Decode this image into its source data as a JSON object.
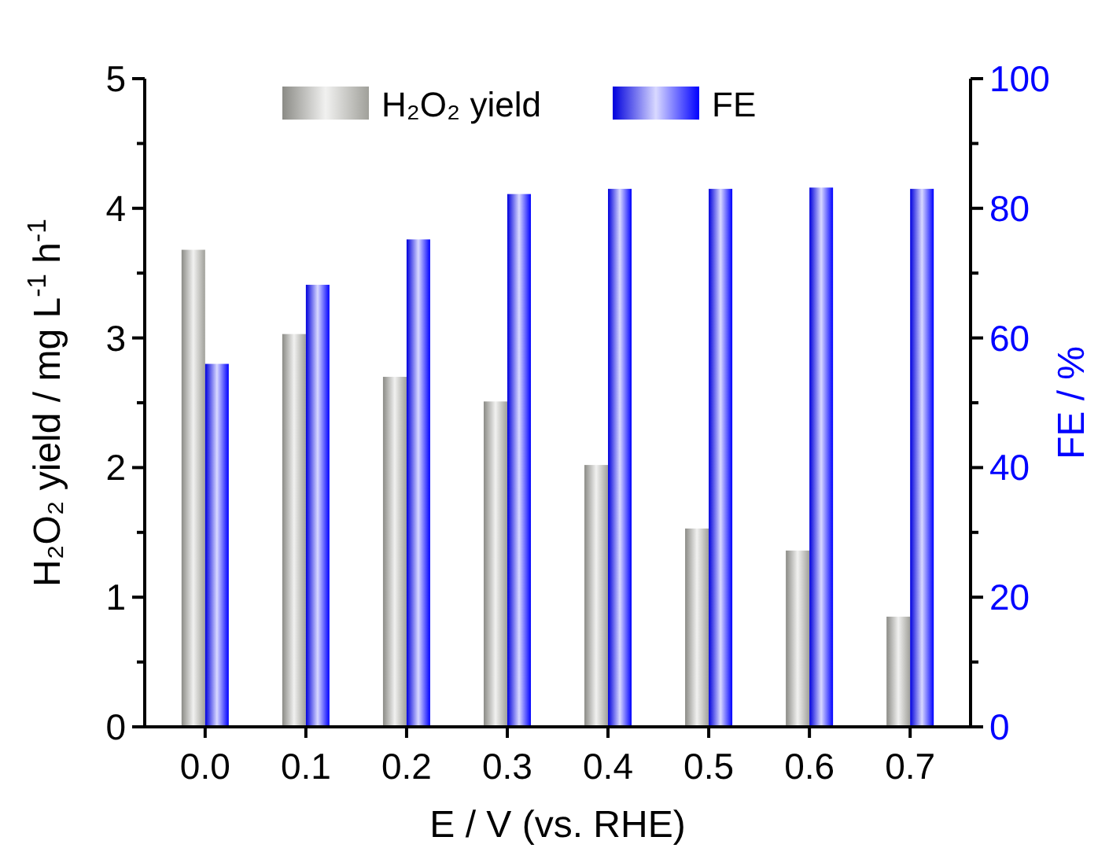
{
  "chart_data": {
    "type": "bar",
    "xlabel": "E / V (vs. RHE)",
    "ylabel": "H₂O₂ yield / mg L$^{-1}$ h$^{-1}$",
    "y2label": "FE / %",
    "categories": [
      "0.0",
      "0.1",
      "0.2",
      "0.3",
      "0.4",
      "0.5",
      "0.6",
      "0.7"
    ],
    "series": [
      {
        "name": "H₂O₂ yield",
        "color": "#a0a09a",
        "values": [
          3.68,
          3.03,
          2.7,
          2.51,
          2.02,
          1.53,
          1.36,
          0.85
        ]
      },
      {
        "name": "FE",
        "color": "#0000ff",
        "axis": "y2",
        "values": [
          56,
          68.2,
          75.2,
          82.2,
          83,
          83,
          83.2,
          83
        ]
      }
    ],
    "ylim": [
      0,
      5
    ],
    "yticks": [
      0,
      {
        "value": 0.5,
        "label": null
      },
      1,
      {
        "value": 1.5,
        "label": null
      },
      2,
      {
        "value": 2.5,
        "label": null
      },
      3,
      {
        "value": 3.5,
        "label": null
      },
      4,
      {
        "value": 4.5,
        "label": null
      },
      5
    ],
    "y2lim": [
      0,
      100
    ],
    "y2ticks": [
      0,
      {
        "value": 10,
        "label": null
      },
      20,
      {
        "value": 30,
        "label": null
      },
      40,
      {
        "value": 50,
        "label": null
      },
      60,
      {
        "value": 70,
        "label": null
      },
      80,
      {
        "value": 90,
        "label": null
      },
      100
    ],
    "legend": "top",
    "grid": false
  }
}
